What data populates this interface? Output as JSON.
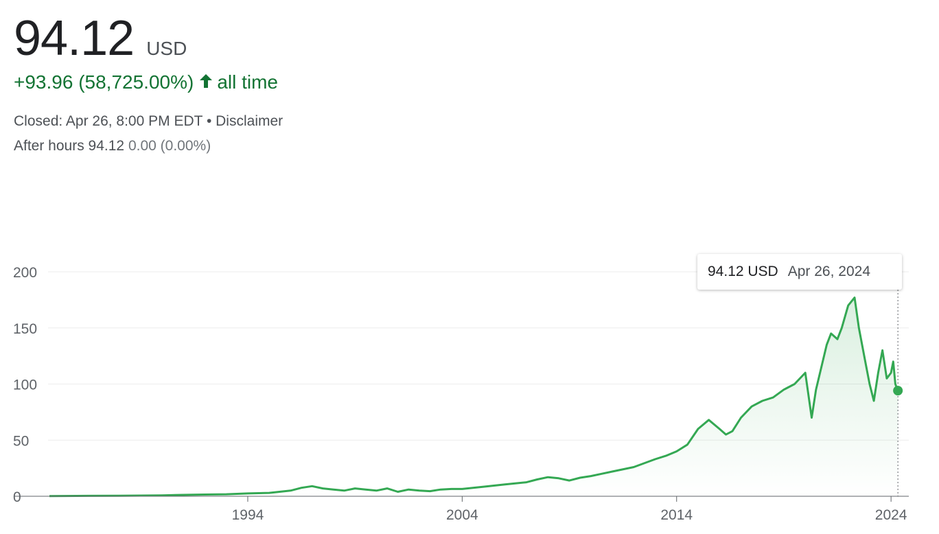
{
  "quote": {
    "price": "94.12",
    "currency": "USD",
    "change": "+93.96 (58,725.00%)",
    "period": "all time",
    "closed_text": "Closed: Apr 26, 8:00 PM EDT",
    "separator": "•",
    "disclaimer": "Disclaimer",
    "after_hours_label": "After hours 94.12",
    "after_hours_change": "0.00 (0.00%)"
  },
  "tooltip": {
    "price": "94.12 USD",
    "date": "Apr 26, 2024"
  },
  "colors": {
    "up": "#137333",
    "line": "#34a853",
    "grid": "#ececec",
    "axis": "#5f6368"
  },
  "icons": {
    "change_arrow": "arrow-up-icon"
  },
  "chart_data": {
    "type": "line",
    "y_ticks": [
      0,
      50,
      100,
      150,
      200
    ],
    "x_ticks": [
      "1994",
      "2004",
      "2014",
      "2024"
    ],
    "ylim": [
      0,
      200
    ],
    "xlim": [
      1984.75,
      2024.7
    ],
    "grid": true,
    "series": [
      {
        "x": [
          1984.75,
          1986,
          1988,
          1990,
          1991,
          1992,
          1993,
          1994,
          1995,
          1996,
          1996.5,
          1997,
          1997.5,
          1998,
          1998.5,
          1999,
          1999.5,
          2000,
          2000.5,
          2001,
          2001.5,
          2002,
          2002.5,
          2003,
          2003.5,
          2004,
          2005,
          2006,
          2007,
          2007.5,
          2008,
          2008.5,
          2009,
          2009.5,
          2010,
          2010.5,
          2011,
          2012,
          2013,
          2013.5,
          2014,
          2014.5,
          2015,
          2015.5,
          2016,
          2016.3,
          2016.6,
          2017,
          2017.5,
          2018,
          2018.5,
          2019,
          2019.5,
          2020,
          2020.3,
          2020.5,
          2021,
          2021.2,
          2021.5,
          2021.7,
          2022,
          2022.3,
          2022.5,
          2022.8,
          2023,
          2023.2,
          2023.4,
          2023.6,
          2023.8,
          2024,
          2024.1,
          2024.2,
          2024.32
        ],
        "y": [
          0.16,
          0.3,
          0.5,
          0.8,
          1.2,
          1.5,
          1.8,
          2.5,
          3.0,
          5.0,
          7.5,
          9.0,
          7.0,
          6.0,
          5.0,
          7.0,
          6.0,
          5.0,
          7.0,
          4.0,
          6.0,
          5.0,
          4.5,
          6.0,
          6.5,
          6.5,
          8.5,
          10.5,
          12.5,
          15.0,
          17.0,
          16.0,
          14.0,
          16.5,
          18.0,
          20.0,
          22.0,
          26.0,
          33.0,
          36.0,
          40.0,
          46.0,
          60.0,
          68.0,
          60.0,
          55.0,
          58.0,
          70.0,
          80.0,
          85.0,
          88.0,
          95.0,
          100.0,
          110.0,
          70.0,
          95.0,
          135.0,
          145.0,
          140.0,
          150.0,
          170.0,
          177.0,
          150.0,
          120.0,
          100.0,
          85.0,
          110.0,
          130.0,
          105.0,
          110.0,
          120.0,
          100.0,
          94.12
        ]
      }
    ]
  }
}
